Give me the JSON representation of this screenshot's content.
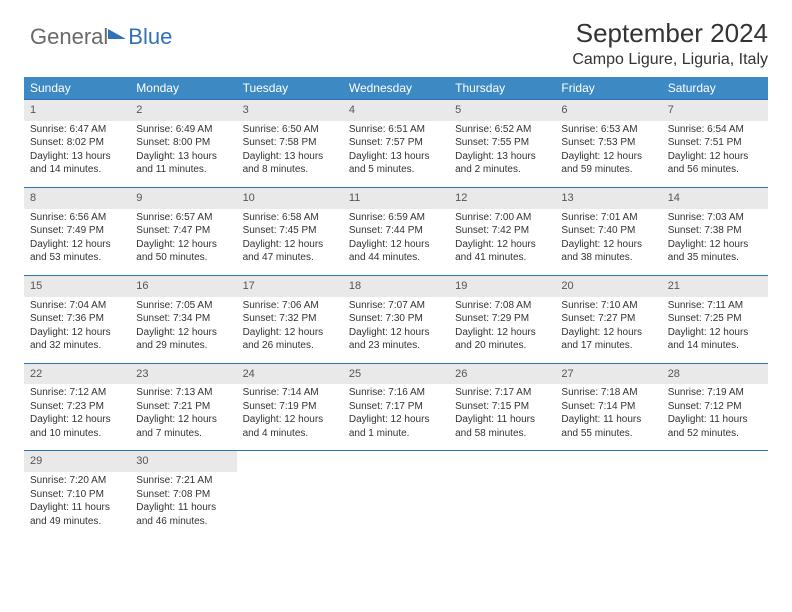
{
  "logo": {
    "part1": "General",
    "part2": "Blue"
  },
  "title": "September 2024",
  "location": "Campo Ligure, Liguria, Italy",
  "colors": {
    "header_bg": "#3d89c4",
    "row_border": "#2f72b8",
    "daynum_bg": "#e9e9e9",
    "text": "#333333",
    "logo_gray": "#6a6a6a",
    "logo_blue": "#2f72b8",
    "background": "#ffffff"
  },
  "week_labels": [
    "Sunday",
    "Monday",
    "Tuesday",
    "Wednesday",
    "Thursday",
    "Friday",
    "Saturday"
  ],
  "days": [
    {
      "n": "1",
      "sr": "6:47 AM",
      "ss": "8:02 PM",
      "dl": "13 hours and 14 minutes."
    },
    {
      "n": "2",
      "sr": "6:49 AM",
      "ss": "8:00 PM",
      "dl": "13 hours and 11 minutes."
    },
    {
      "n": "3",
      "sr": "6:50 AM",
      "ss": "7:58 PM",
      "dl": "13 hours and 8 minutes."
    },
    {
      "n": "4",
      "sr": "6:51 AM",
      "ss": "7:57 PM",
      "dl": "13 hours and 5 minutes."
    },
    {
      "n": "5",
      "sr": "6:52 AM",
      "ss": "7:55 PM",
      "dl": "13 hours and 2 minutes."
    },
    {
      "n": "6",
      "sr": "6:53 AM",
      "ss": "7:53 PM",
      "dl": "12 hours and 59 minutes."
    },
    {
      "n": "7",
      "sr": "6:54 AM",
      "ss": "7:51 PM",
      "dl": "12 hours and 56 minutes."
    },
    {
      "n": "8",
      "sr": "6:56 AM",
      "ss": "7:49 PM",
      "dl": "12 hours and 53 minutes."
    },
    {
      "n": "9",
      "sr": "6:57 AM",
      "ss": "7:47 PM",
      "dl": "12 hours and 50 minutes."
    },
    {
      "n": "10",
      "sr": "6:58 AM",
      "ss": "7:45 PM",
      "dl": "12 hours and 47 minutes."
    },
    {
      "n": "11",
      "sr": "6:59 AM",
      "ss": "7:44 PM",
      "dl": "12 hours and 44 minutes."
    },
    {
      "n": "12",
      "sr": "7:00 AM",
      "ss": "7:42 PM",
      "dl": "12 hours and 41 minutes."
    },
    {
      "n": "13",
      "sr": "7:01 AM",
      "ss": "7:40 PM",
      "dl": "12 hours and 38 minutes."
    },
    {
      "n": "14",
      "sr": "7:03 AM",
      "ss": "7:38 PM",
      "dl": "12 hours and 35 minutes."
    },
    {
      "n": "15",
      "sr": "7:04 AM",
      "ss": "7:36 PM",
      "dl": "12 hours and 32 minutes."
    },
    {
      "n": "16",
      "sr": "7:05 AM",
      "ss": "7:34 PM",
      "dl": "12 hours and 29 minutes."
    },
    {
      "n": "17",
      "sr": "7:06 AM",
      "ss": "7:32 PM",
      "dl": "12 hours and 26 minutes."
    },
    {
      "n": "18",
      "sr": "7:07 AM",
      "ss": "7:30 PM",
      "dl": "12 hours and 23 minutes."
    },
    {
      "n": "19",
      "sr": "7:08 AM",
      "ss": "7:29 PM",
      "dl": "12 hours and 20 minutes."
    },
    {
      "n": "20",
      "sr": "7:10 AM",
      "ss": "7:27 PM",
      "dl": "12 hours and 17 minutes."
    },
    {
      "n": "21",
      "sr": "7:11 AM",
      "ss": "7:25 PM",
      "dl": "12 hours and 14 minutes."
    },
    {
      "n": "22",
      "sr": "7:12 AM",
      "ss": "7:23 PM",
      "dl": "12 hours and 10 minutes."
    },
    {
      "n": "23",
      "sr": "7:13 AM",
      "ss": "7:21 PM",
      "dl": "12 hours and 7 minutes."
    },
    {
      "n": "24",
      "sr": "7:14 AM",
      "ss": "7:19 PM",
      "dl": "12 hours and 4 minutes."
    },
    {
      "n": "25",
      "sr": "7:16 AM",
      "ss": "7:17 PM",
      "dl": "12 hours and 1 minute."
    },
    {
      "n": "26",
      "sr": "7:17 AM",
      "ss": "7:15 PM",
      "dl": "11 hours and 58 minutes."
    },
    {
      "n": "27",
      "sr": "7:18 AM",
      "ss": "7:14 PM",
      "dl": "11 hours and 55 minutes."
    },
    {
      "n": "28",
      "sr": "7:19 AM",
      "ss": "7:12 PM",
      "dl": "11 hours and 52 minutes."
    },
    {
      "n": "29",
      "sr": "7:20 AM",
      "ss": "7:10 PM",
      "dl": "11 hours and 49 minutes."
    },
    {
      "n": "30",
      "sr": "7:21 AM",
      "ss": "7:08 PM",
      "dl": "11 hours and 46 minutes."
    }
  ],
  "labels": {
    "sunrise": "Sunrise:",
    "sunset": "Sunset:",
    "daylight": "Daylight:"
  },
  "layout": {
    "start_weekday": 0,
    "cols": 7,
    "rows": 5
  }
}
